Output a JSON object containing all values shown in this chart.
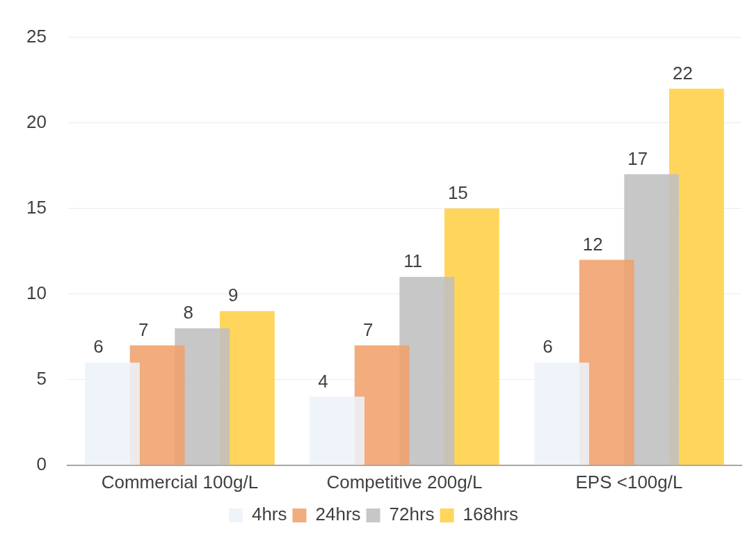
{
  "chart_data": {
    "type": "bar",
    "categories": [
      "Commercial 100g/L",
      "Competitive 200g/L",
      "EPS <100g/L"
    ],
    "series": [
      {
        "name": "4hrs",
        "color": "#edf2fa",
        "values": [
          6,
          4,
          6
        ]
      },
      {
        "name": "24hrs",
        "color": "#f0a06b",
        "values": [
          7,
          7,
          12
        ]
      },
      {
        "name": "72hrs",
        "color": "#bfbfbf",
        "values": [
          8,
          11,
          17
        ]
      },
      {
        "name": "168hrs",
        "color": "#ffcf45",
        "values": [
          9,
          15,
          22
        ]
      }
    ],
    "ylim": [
      0,
      25
    ],
    "yticks": [
      0,
      5,
      10,
      15,
      20,
      25
    ],
    "grid": "y",
    "legend": "bottom",
    "data_labels": true
  }
}
